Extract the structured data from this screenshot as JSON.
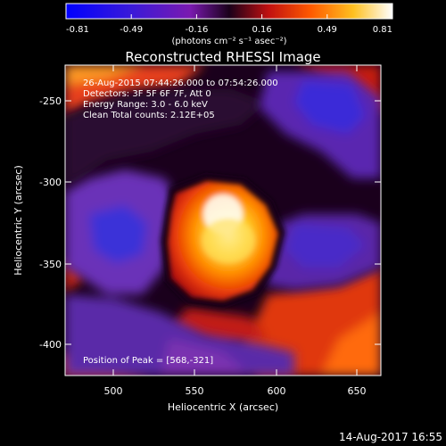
{
  "colorbar": {
    "ticks": [
      "-0.81",
      "-0.49",
      "-0.16",
      "0.16",
      "0.49",
      "0.81"
    ],
    "unit": "(photons cm⁻² s⁻¹ asec⁻²)"
  },
  "plot": {
    "title": "Reconstructed RHESSI Image",
    "info_lines": [
      "26-Aug-2015 07:44:26.000 to 07:54:26.000",
      "Detectors: 3F 5F 6F 7F, Att 0",
      "Energy Range: 3.0 - 6.0 keV",
      "Clean      Total counts: 2.12E+05"
    ],
    "peak_label": "Position of Peak = [568,-321]",
    "xlabel": "Heliocentric X (arcsec)",
    "ylabel": "Heliocentric Y (arcsec)",
    "x_ticks": [
      "500",
      "550",
      "600",
      "650"
    ],
    "y_ticks": [
      "-250",
      "-300",
      "-350",
      "-400"
    ]
  },
  "footer": {
    "timestamp": "14-Aug-2017 16:55"
  }
}
